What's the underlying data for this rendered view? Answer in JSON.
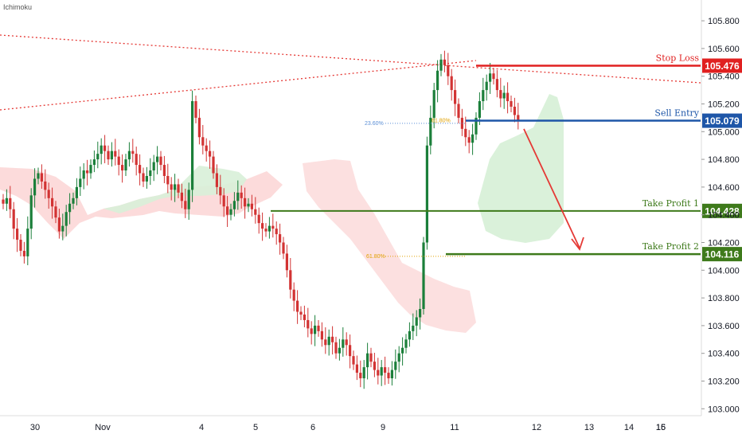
{
  "indicator": "Ichimoku",
  "colors": {
    "up": "#26a69a",
    "up_dark": "#1b7f3a",
    "down": "#d23333",
    "stop_loss": "#e02020",
    "sell_entry": "#1e56a8",
    "take_profit": "#3e7a1b",
    "cloud_bull": "#d8f0d8",
    "cloud_bear": "#fbd5d5",
    "trend": "#e53935",
    "fib_blue": "#5b8fd6",
    "fib_orange": "#e0a000"
  },
  "chart_data": {
    "type": "candlestick",
    "y_axis": {
      "ticks": [
        "105.800",
        "105.600",
        "105.400",
        "105.200",
        "105.000",
        "104.800",
        "104.600",
        "104.400",
        "104.200",
        "104.000",
        "103.800",
        "103.600",
        "103.400",
        "103.200",
        "103.000"
      ],
      "ylim": [
        102.95,
        105.95
      ]
    },
    "x_axis": {
      "ticks": [
        "30",
        "Nov",
        "4",
        "5",
        "6",
        "9",
        "11",
        "12",
        "13",
        "14",
        "15",
        "16"
      ]
    },
    "levels": [
      {
        "name": "Stop Loss",
        "value": 105.476,
        "label": "105.476",
        "color_key": "stop_loss"
      },
      {
        "name": "Sell Entry",
        "value": 105.079,
        "label": "105.079",
        "color_key": "sell_entry"
      },
      {
        "name": "Take Profit 1",
        "value": 104.428,
        "label": "104.428",
        "color_key": "take_profit"
      },
      {
        "name": "Take Profit 2",
        "value": 104.116,
        "label": "104.116",
        "color_key": "take_profit"
      }
    ],
    "fib_labels": [
      {
        "label": "23.60%",
        "value": 105.06
      },
      {
        "label": "61.80%",
        "value": 105.08
      },
      {
        "label": "61.80%",
        "value": 104.1
      }
    ],
    "close_series": [
      104.48,
      104.52,
      104.44,
      104.3,
      104.22,
      104.14,
      104.1,
      104.3,
      104.54,
      104.66,
      104.7,
      104.64,
      104.58,
      104.52,
      104.46,
      104.38,
      104.28,
      104.32,
      104.42,
      104.48,
      104.52,
      104.6,
      104.66,
      104.72,
      104.7,
      104.76,
      104.8,
      104.84,
      104.9,
      104.86,
      104.8,
      104.86,
      104.82,
      104.76,
      104.72,
      104.8,
      104.86,
      104.84,
      104.76,
      104.7,
      104.64,
      104.68,
      104.72,
      104.78,
      104.82,
      104.76,
      104.68,
      104.62,
      104.58,
      104.62,
      104.56,
      104.5,
      104.44,
      104.58,
      105.22,
      105.1,
      104.96,
      104.9,
      104.86,
      104.82,
      104.7,
      104.6,
      104.54,
      104.46,
      104.4,
      104.44,
      104.5,
      104.56,
      104.52,
      104.46,
      104.48,
      104.44,
      104.4,
      104.34,
      104.3,
      104.28,
      104.32,
      104.3,
      104.26,
      104.2,
      104.12,
      104.0,
      103.86,
      103.78,
      103.7,
      103.68,
      103.64,
      103.58,
      103.54,
      103.6,
      103.56,
      103.5,
      103.46,
      103.52,
      103.48,
      103.4,
      103.44,
      103.5,
      103.46,
      103.38,
      103.32,
      103.26,
      103.22,
      103.3,
      103.4,
      103.34,
      103.28,
      103.24,
      103.3,
      103.26,
      103.22,
      103.28,
      103.34,
      103.4,
      103.44,
      103.5,
      103.56,
      103.6,
      103.66,
      103.72,
      104.2,
      104.9,
      105.1,
      105.3,
      105.44,
      105.52,
      105.48,
      105.4,
      105.3,
      105.2,
      105.1,
      105.02,
      104.96,
      104.92,
      104.98,
      105.1,
      105.22,
      105.3,
      105.36,
      105.42,
      105.38,
      105.3,
      105.24,
      105.28,
      105.22,
      105.18,
      105.12,
      105.08
    ]
  }
}
